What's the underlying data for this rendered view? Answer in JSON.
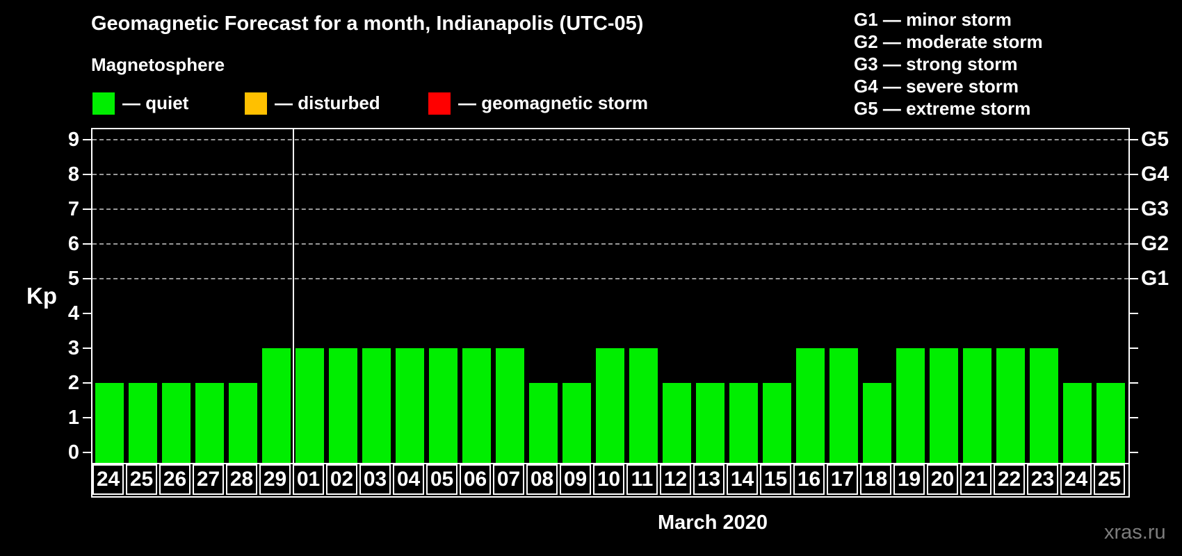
{
  "title": "Geomagnetic Forecast for a month, Indianapolis (UTC-05)",
  "subtitle": "Magnetosphere",
  "legend": {
    "items": [
      {
        "label": "— quiet",
        "color": "#00ee00"
      },
      {
        "label": "— disturbed",
        "color": "#ffc000"
      },
      {
        "label": "— geomagnetic storm",
        "color": "#ff0000"
      }
    ]
  },
  "storm_scale_legend": [
    "G1 — minor storm",
    "G2 — moderate storm",
    "G3 — strong storm",
    "G4 — severe storm",
    "G5 — extreme storm"
  ],
  "watermark": "xras.ru",
  "chart_data": {
    "type": "bar",
    "title": "Geomagnetic Forecast for a month, Indianapolis (UTC-05)",
    "ylabel": "Kp",
    "xlabel": "March 2020",
    "bar_color": "#00ee00",
    "grid": "dashed horizontal at Kp 5-9 only",
    "legend_position": "top-left and top-right",
    "ylim": [
      0,
      9.34
    ],
    "yticks": [
      0,
      1,
      2,
      3,
      4,
      5,
      6,
      7,
      8,
      9
    ],
    "gridlines_at": [
      5,
      6,
      7,
      8,
      9
    ],
    "right_axis": [
      {
        "kp": 5,
        "label": "G1"
      },
      {
        "kp": 6,
        "label": "G2"
      },
      {
        "kp": 7,
        "label": "G3"
      },
      {
        "kp": 8,
        "label": "G4"
      },
      {
        "kp": 9,
        "label": "G5"
      }
    ],
    "month_separator_after_index": 5,
    "categories": [
      "24",
      "25",
      "26",
      "27",
      "28",
      "29",
      "01",
      "02",
      "03",
      "04",
      "05",
      "06",
      "07",
      "08",
      "09",
      "10",
      "11",
      "12",
      "13",
      "14",
      "15",
      "16",
      "17",
      "18",
      "19",
      "20",
      "21",
      "22",
      "23",
      "24",
      "25"
    ],
    "values": [
      2,
      2,
      2,
      2,
      2,
      3,
      3,
      3,
      3,
      3,
      3,
      3,
      3,
      2,
      2,
      3,
      3,
      2,
      2,
      2,
      2,
      3,
      3,
      2,
      3,
      3,
      3,
      3,
      3,
      2,
      2
    ]
  }
}
